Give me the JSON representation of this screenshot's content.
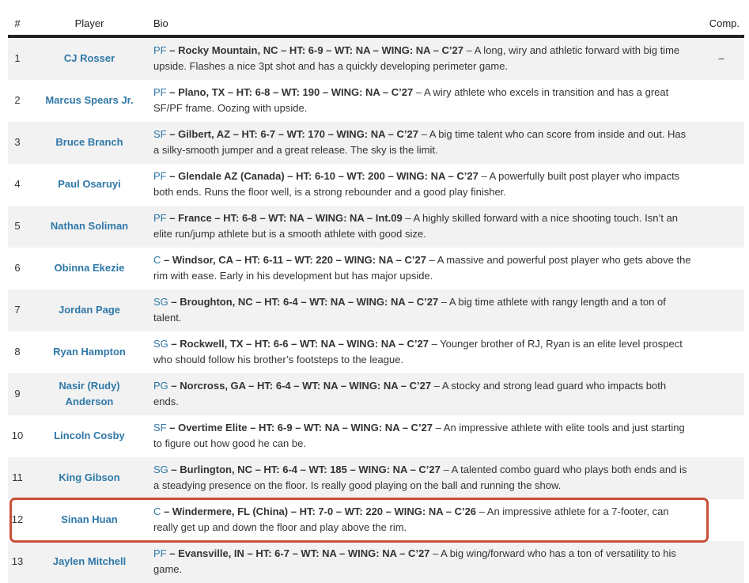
{
  "headers": {
    "num": "#",
    "player": "Player",
    "bio": "Bio",
    "comp": "Comp."
  },
  "colors": {
    "link": "#2f78a8",
    "highlight": "#c9503a",
    "row_alt": "#f2f2f2"
  },
  "highlighted_row": 12,
  "rows": [
    {
      "num": "1",
      "player": "CJ Rosser",
      "pos": "PF",
      "details": " – Rocky Mountain, NC – HT: 6-9 – WT: NA – WING: NA – C’27",
      "desc": " – A long, wiry and athletic forward with big time upside. Flashes a nice 3pt shot and has a quickly developing perimeter game.",
      "comp": "–"
    },
    {
      "num": "2",
      "player": "Marcus Spears Jr.",
      "pos": "PF",
      "details": " – Plano, TX – HT: 6-8 – WT: 190 – WING: NA – C’27",
      "desc": " – A wiry athlete who excels in transition and has a great SF/PF frame. Oozing with upside.",
      "comp": ""
    },
    {
      "num": "3",
      "player": "Bruce Branch",
      "pos": "SF",
      "details": " – Gilbert, AZ – HT: 6-7 – WT: 170 – WING: NA – C’27",
      "desc": " – A big time talent who can score from inside and out. Has a silky-smooth jumper and a great release. The sky is the limit.",
      "comp": ""
    },
    {
      "num": "4",
      "player": "Paul Osaruyi",
      "pos": "PF",
      "details": " – Glendale AZ (Canada) – HT: 6-10 – WT: 200 – WING: NA – C’27",
      "desc": " – A powerfully built post player who impacts both ends. Runs the floor well, is a strong rebounder and a good play finisher.",
      "comp": ""
    },
    {
      "num": "5",
      "player": "Nathan Soliman",
      "pos": "PF",
      "details": " – France – HT: 6-8 – WT: NA – WING: NA – Int.09",
      "desc": " – A highly skilled forward with a nice shooting touch. Isn’t an elite run/jump athlete but is a smooth athlete with good size.",
      "comp": ""
    },
    {
      "num": "6",
      "player": "Obinna Ekezie",
      "pos": "C",
      "details": " – Windsor, CA – HT: 6-11 – WT: 220 – WING: NA – C’27",
      "desc": " – A massive and powerful post player who gets above the rim with ease. Early in his development but has major upside.",
      "comp": ""
    },
    {
      "num": "7",
      "player": "Jordan Page",
      "pos": "SG",
      "details": " – Broughton, NC – HT: 6-4 – WT: NA – WING: NA – C’27",
      "desc": " – A big time athlete with rangy length and a ton of talent.",
      "comp": ""
    },
    {
      "num": "8",
      "player": "Ryan Hampton",
      "pos": "SG",
      "details": " – Rockwell, TX – HT: 6-6 – WT: NA – WING: NA – C’27",
      "desc": " – Younger brother of RJ, Ryan is an elite level prospect who should follow his brother’s footsteps to the league.",
      "comp": ""
    },
    {
      "num": "9",
      "player": "Nasir (Rudy) Anderson",
      "pos": "PG",
      "details": " – Norcross, GA – HT: 6-4 – WT: NA – WING: NA – C’27",
      "desc": " – A stocky and strong lead guard who impacts both ends.",
      "comp": ""
    },
    {
      "num": "10",
      "player": "Lincoln Cosby",
      "pos": "SF",
      "details": " – Overtime Elite – HT: 6-9 – WT: NA – WING: NA – C’27",
      "desc": " – An impressive athlete with elite tools and just starting to figure out how good he can be.",
      "comp": ""
    },
    {
      "num": "11",
      "player": "King Gibson",
      "pos": "SG",
      "details": " – Burlington, NC – HT: 6-4 – WT: 185 – WING: NA – C’27",
      "desc": " – A talented combo guard who plays both ends and is a steadying presence on the floor. Is really good playing on the ball and running the show.",
      "comp": ""
    },
    {
      "num": "12",
      "player": "Sinan Huan",
      "pos": "C",
      "details": " – Windermere, FL (China) – HT: 7-0 – WT: 220 – WING: NA – C’26",
      "desc": " – An impressive athlete for a 7-footer, can really get up and down the floor and play above the rim.",
      "comp": ""
    },
    {
      "num": "13",
      "player": "Jaylen Mitchell",
      "pos": "PF",
      "details": " – Evansville, IN – HT: 6-7 – WT: NA – WING: NA – C’27",
      "desc": " – A big wing/forward who has a ton of versatility to his game.",
      "comp": ""
    }
  ]
}
